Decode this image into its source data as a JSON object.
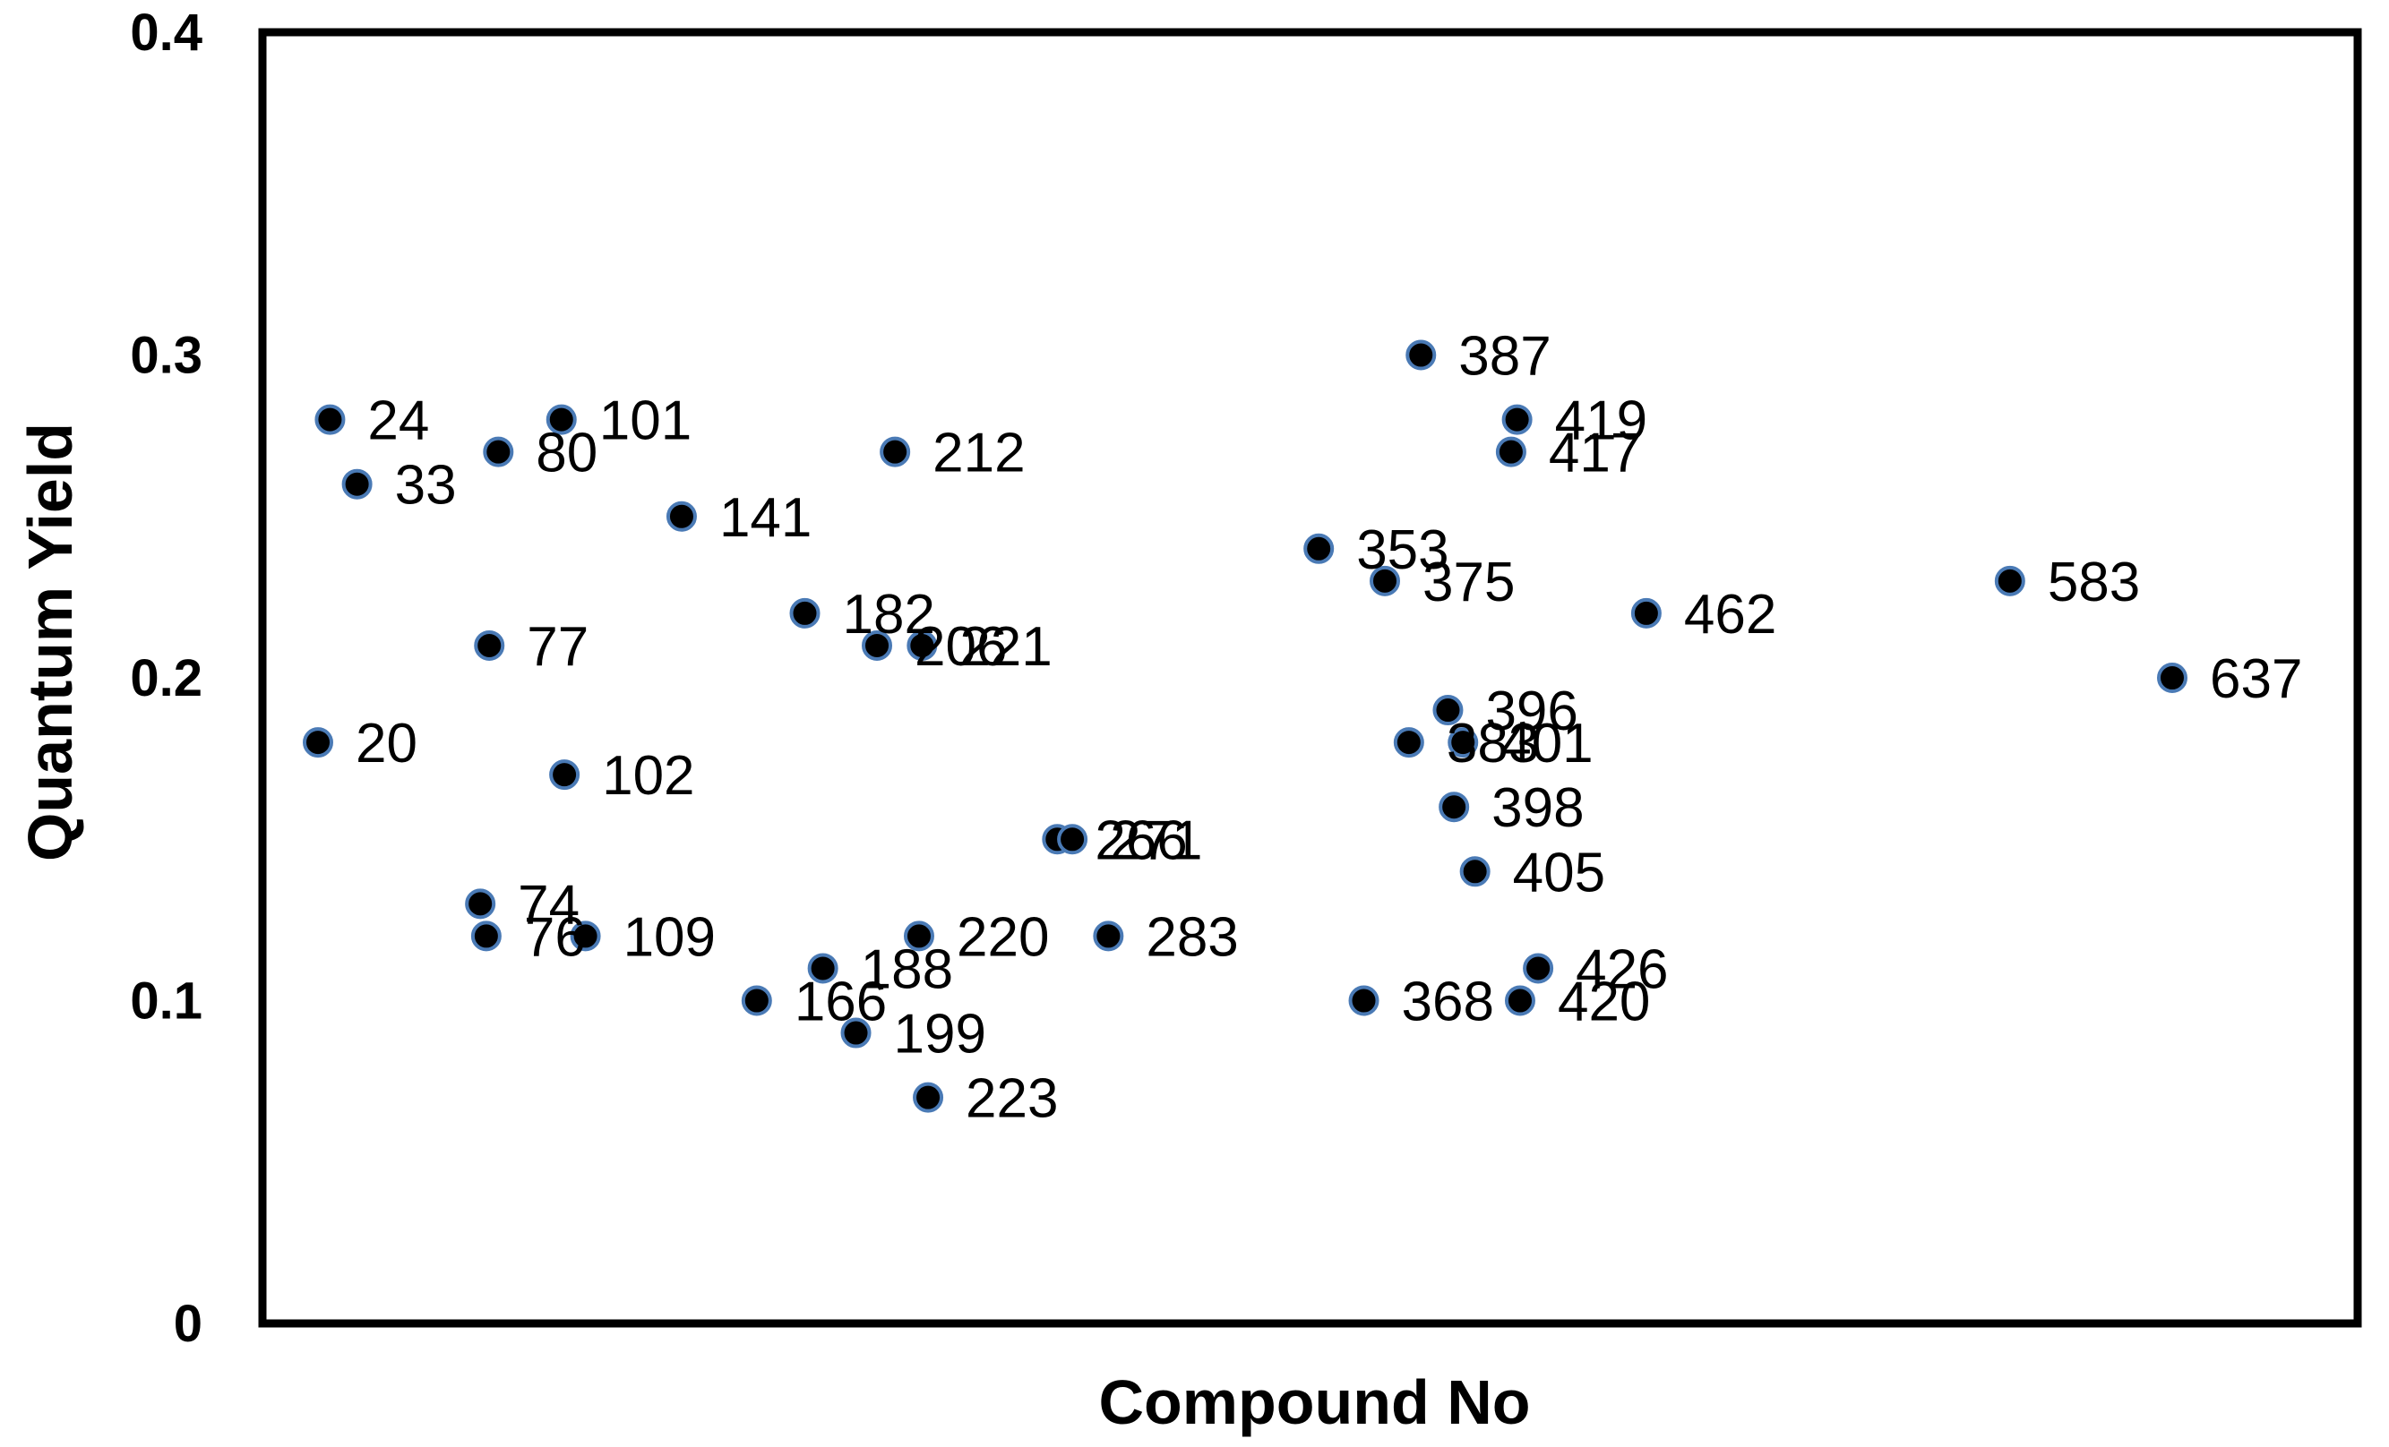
{
  "chart_data": {
    "type": "scatter",
    "title": "",
    "xlabel": "Compound No",
    "ylabel": "Quantum Yield",
    "xlim": [
      0,
      680
    ],
    "ylim": [
      0,
      0.4
    ],
    "x_ticks_shown": false,
    "y_ticks": [
      "0",
      "0.1",
      "0.2",
      "0.3",
      "0.4"
    ],
    "grid": false,
    "legend": "none",
    "colors": {
      "marker_fill": "#000000",
      "marker_edge": "#4a7ab5",
      "frame": "#000000",
      "text": "#000000"
    },
    "points": [
      {
        "label": "20",
        "x": 20,
        "y": 0.18
      },
      {
        "label": "24",
        "x": 24,
        "y": 0.28
      },
      {
        "label": "33",
        "x": 33,
        "y": 0.26
      },
      {
        "label": "74",
        "x": 74,
        "y": 0.13
      },
      {
        "label": "76",
        "x": 76,
        "y": 0.12
      },
      {
        "label": "77",
        "x": 77,
        "y": 0.21
      },
      {
        "label": "80",
        "x": 80,
        "y": 0.27
      },
      {
        "label": "101",
        "x": 101,
        "y": 0.28
      },
      {
        "label": "102",
        "x": 102,
        "y": 0.17
      },
      {
        "label": "109",
        "x": 109,
        "y": 0.12
      },
      {
        "label": "141",
        "x": 141,
        "y": 0.25
      },
      {
        "label": "166",
        "x": 166,
        "y": 0.1
      },
      {
        "label": "182",
        "x": 182,
        "y": 0.22
      },
      {
        "label": "188",
        "x": 188,
        "y": 0.11
      },
      {
        "label": "199",
        "x": 199,
        "y": 0.09
      },
      {
        "label": "206",
        "x": 206,
        "y": 0.21
      },
      {
        "label": "212",
        "x": 212,
        "y": 0.27
      },
      {
        "label": "220",
        "x": 220,
        "y": 0.12
      },
      {
        "label": "221",
        "x": 221,
        "y": 0.21
      },
      {
        "label": "223",
        "x": 223,
        "y": 0.07
      },
      {
        "label": "266",
        "x": 266,
        "y": 0.15
      },
      {
        "label": "271",
        "x": 271,
        "y": 0.15
      },
      {
        "label": "283",
        "x": 283,
        "y": 0.12
      },
      {
        "label": "353",
        "x": 353,
        "y": 0.24
      },
      {
        "label": "368",
        "x": 368,
        "y": 0.1
      },
      {
        "label": "375",
        "x": 375,
        "y": 0.23
      },
      {
        "label": "383",
        "x": 383,
        "y": 0.18
      },
      {
        "label": "387",
        "x": 387,
        "y": 0.3
      },
      {
        "label": "396",
        "x": 396,
        "y": 0.19
      },
      {
        "label": "398",
        "x": 398,
        "y": 0.16
      },
      {
        "label": "401",
        "x": 401,
        "y": 0.18
      },
      {
        "label": "405",
        "x": 405,
        "y": 0.14
      },
      {
        "label": "417",
        "x": 417,
        "y": 0.27
      },
      {
        "label": "419",
        "x": 419,
        "y": 0.28
      },
      {
        "label": "420",
        "x": 420,
        "y": 0.1
      },
      {
        "label": "426",
        "x": 426,
        "y": 0.11
      },
      {
        "label": "462",
        "x": 462,
        "y": 0.22
      },
      {
        "label": "583",
        "x": 583,
        "y": 0.23
      },
      {
        "label": "637",
        "x": 637,
        "y": 0.2
      }
    ]
  }
}
